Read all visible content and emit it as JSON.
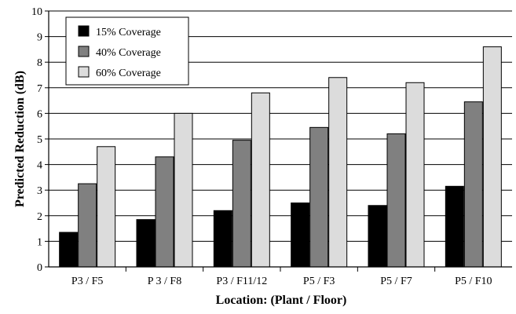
{
  "chart_data": {
    "type": "bar",
    "title": "",
    "xlabel": "Location: (Plant / Floor)",
    "ylabel": "Predicted Reduction (dB)",
    "ylim": [
      0,
      10
    ],
    "yticks": [
      "0",
      "1",
      "2",
      "3",
      "4",
      "5",
      "6",
      "7",
      "8",
      "9",
      "10"
    ],
    "grid": true,
    "legend_position": "top-left",
    "categories": [
      "P3 / F5",
      "P 3 / F8",
      "P3 / F11/12",
      "P5 / F3",
      "P5 / F7",
      "P5 / F10"
    ],
    "series": [
      {
        "name": "15% Coverage",
        "color": "#000000",
        "values": [
          1.35,
          1.85,
          2.2,
          2.5,
          2.4,
          3.15
        ]
      },
      {
        "name": "40% Coverage",
        "color": "#808080",
        "values": [
          3.25,
          4.3,
          4.95,
          5.45,
          5.2,
          6.45
        ]
      },
      {
        "name": "60% Coverage",
        "color": "#dcdcdc",
        "values": [
          4.7,
          6.0,
          6.8,
          7.4,
          7.2,
          8.6
        ]
      }
    ]
  }
}
